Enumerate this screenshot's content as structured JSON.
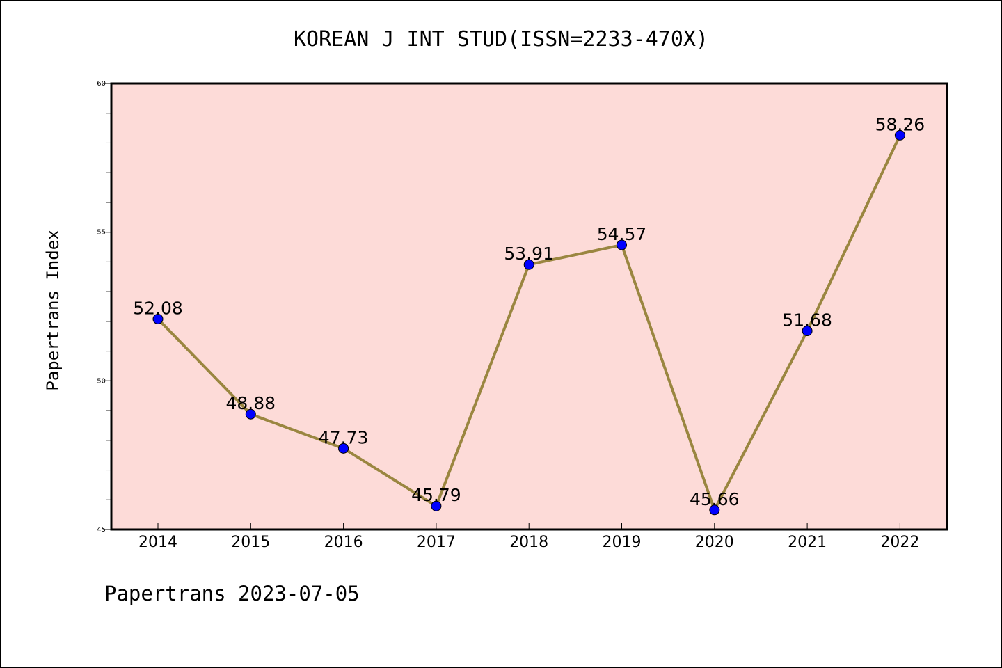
{
  "chart_data": {
    "type": "line",
    "title": "KOREAN J INT STUD(ISSN=2233-470X)",
    "ylabel": "Papertrans Index",
    "xlabel": "",
    "categories": [
      "2014",
      "2015",
      "2016",
      "2017",
      "2018",
      "2019",
      "2020",
      "2021",
      "2022"
    ],
    "values": [
      52.08,
      48.88,
      47.73,
      45.79,
      53.91,
      54.57,
      45.66,
      51.68,
      58.26
    ],
    "data_labels": [
      "52.08",
      "48.88",
      "47.73",
      "45.79",
      "53.91",
      "54.57",
      "45.66",
      "51.68",
      "58.26"
    ],
    "ylim": [
      45,
      60
    ],
    "yticks": [
      "45",
      "50",
      "55",
      "60"
    ],
    "grid": false,
    "colors": {
      "plot_background": "#fddbd8",
      "line": "#9a8640",
      "marker": "#0000ff"
    }
  },
  "footer": "Papertrans 2023-07-05"
}
